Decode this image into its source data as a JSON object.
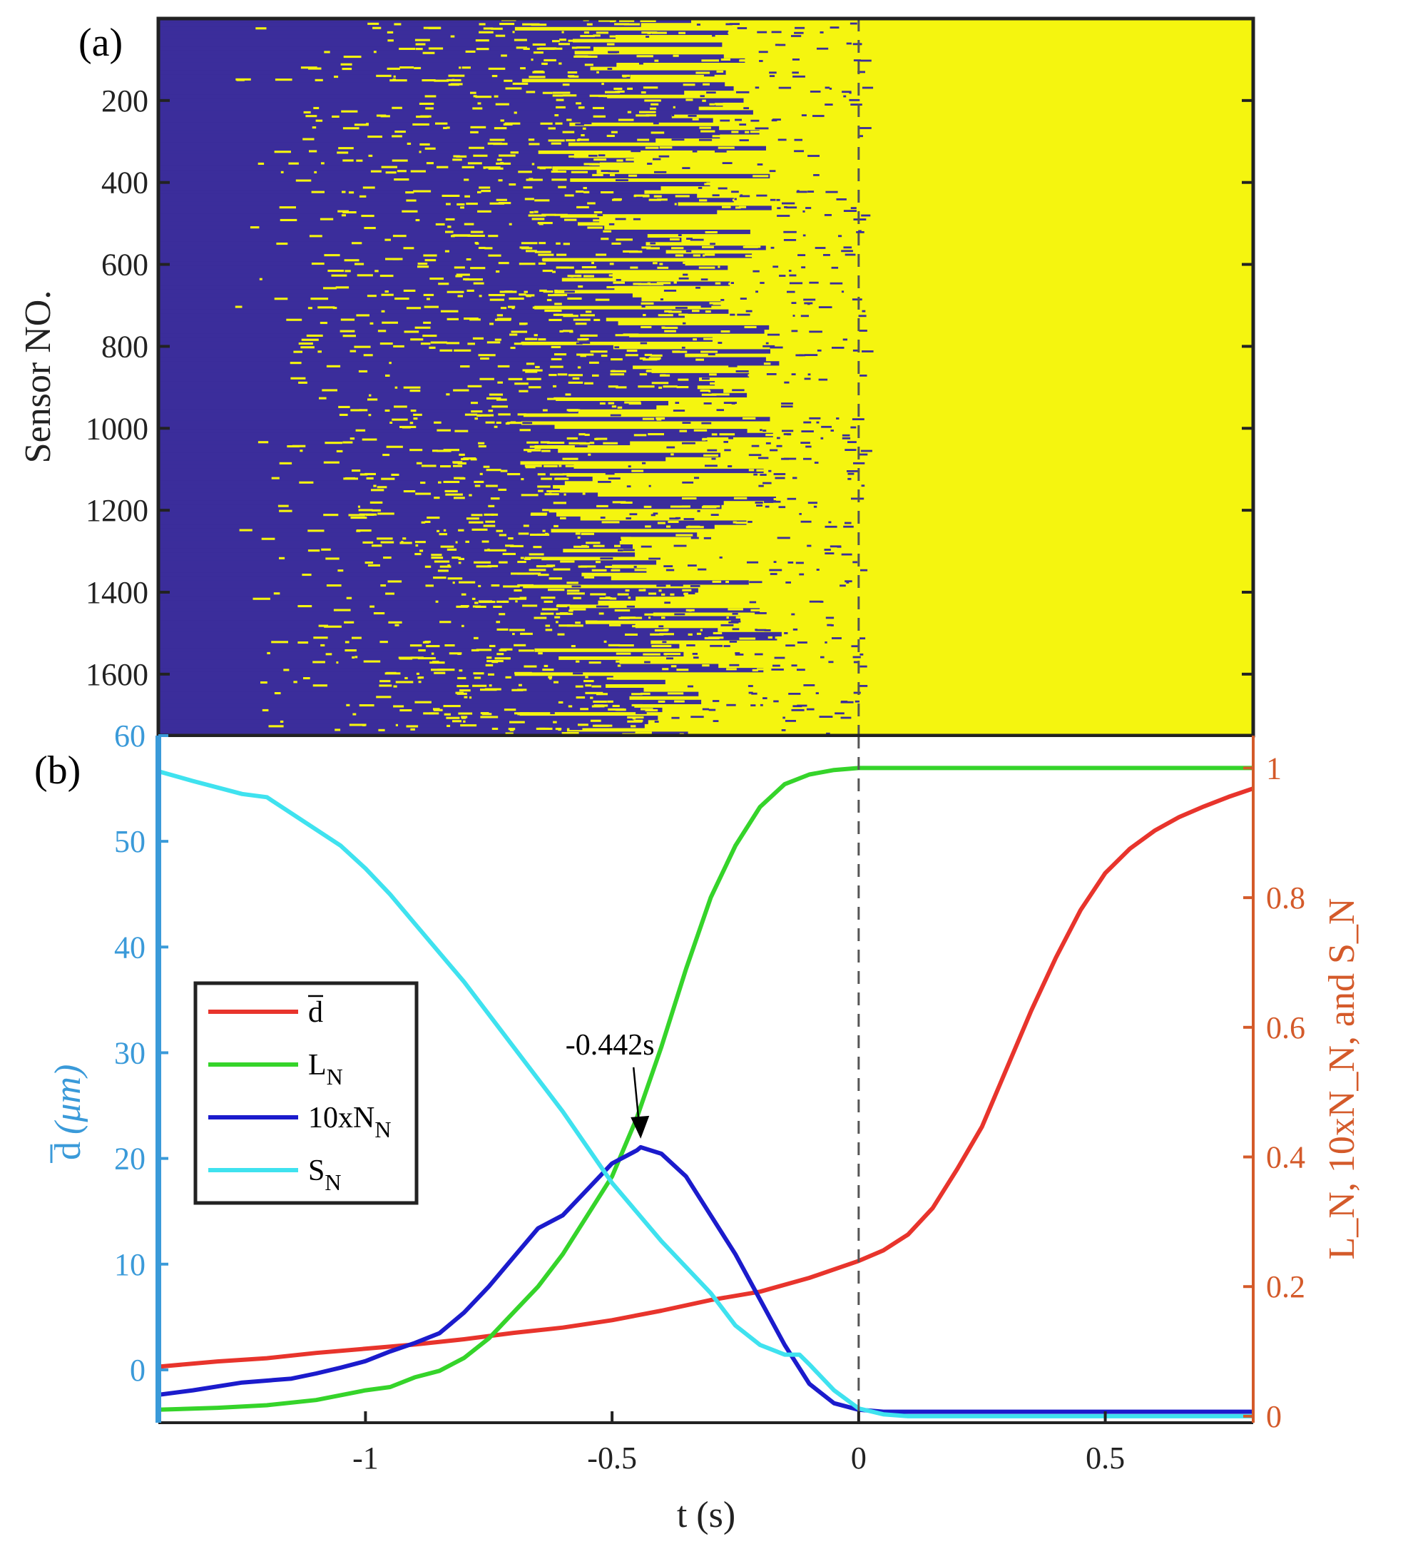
{
  "chart_data": [
    {
      "panel": "(a)",
      "type": "heatmap",
      "description_colors": {
        "state_0": "#3b2d9b",
        "state_1": "#f5f50f"
      },
      "ylabel": "Sensor NO.",
      "yticks": [
        200,
        400,
        600,
        800,
        1000,
        1200,
        1400,
        1600
      ],
      "ylim": [
        0,
        1750
      ],
      "xlim": [
        -1.42,
        0.8
      ],
      "front_start_t": -1.05,
      "front_end_t": -0.05,
      "marker_t": 0
    },
    {
      "panel": "(b)",
      "type": "line",
      "xlabel": "t (s)",
      "xticks": [
        -1,
        -0.5,
        0,
        0.5
      ],
      "xlim": [
        -1.42,
        0.8
      ],
      "y_left": {
        "label_main": "d",
        "label_unit": "(μm)",
        "ticks": [
          0,
          10,
          20,
          30,
          40,
          50,
          60
        ],
        "lim": [
          -5,
          60
        ],
        "color": "#3a9ad9"
      },
      "y_right": {
        "label": "L_N, 10xN_N, and S_N",
        "ticks": [
          "0",
          "0.2",
          "0.4",
          "0.6",
          "0.8",
          "1"
        ],
        "tick_values": [
          0,
          0.2,
          0.4,
          0.6,
          0.8,
          1
        ],
        "lim": [
          -0.01,
          1.05
        ],
        "color": "#d45a2a"
      },
      "series": [
        {
          "name": "d",
          "label_main": "d",
          "label_sub": "",
          "axis": "left",
          "color": "#e8342c",
          "x": [
            -1.42,
            -1.3,
            -1.2,
            -1.1,
            -1.0,
            -0.9,
            -0.8,
            -0.7,
            -0.6,
            -0.5,
            -0.4,
            -0.3,
            -0.2,
            -0.1,
            0.0,
            0.05,
            0.1,
            0.15,
            0.2,
            0.25,
            0.3,
            0.35,
            0.4,
            0.45,
            0.5,
            0.55,
            0.6,
            0.65,
            0.7,
            0.75,
            0.8
          ],
          "y": [
            0.3,
            0.8,
            1.1,
            1.6,
            2.0,
            2.4,
            2.9,
            3.5,
            4.0,
            4.7,
            5.6,
            6.6,
            7.4,
            8.7,
            10.3,
            11.3,
            12.8,
            15.3,
            19.0,
            23.0,
            28.5,
            34.0,
            39.0,
            43.5,
            47.0,
            49.3,
            51.0,
            52.3,
            53.3,
            54.2,
            55.0
          ]
        },
        {
          "name": "L_N",
          "label_main": "L",
          "label_sub": "N",
          "axis": "right",
          "color": "#35d42a",
          "x": [
            -1.42,
            -1.3,
            -1.2,
            -1.1,
            -1.0,
            -0.95,
            -0.9,
            -0.85,
            -0.8,
            -0.75,
            -0.7,
            -0.65,
            -0.6,
            -0.55,
            -0.5,
            -0.45,
            -0.4,
            -0.35,
            -0.3,
            -0.25,
            -0.2,
            -0.15,
            -0.1,
            -0.05,
            0.0,
            0.8
          ],
          "y": [
            0.01,
            0.013,
            0.017,
            0.025,
            0.04,
            0.045,
            0.06,
            0.07,
            0.09,
            0.12,
            0.16,
            0.2,
            0.25,
            0.31,
            0.37,
            0.46,
            0.57,
            0.69,
            0.8,
            0.88,
            0.94,
            0.975,
            0.99,
            0.997,
            1.0,
            1.0
          ]
        },
        {
          "name": "10xN_N",
          "label_main": "10xN",
          "label_sub": "N",
          "axis": "right",
          "color": "#1b1bcc",
          "x": [
            -1.42,
            -1.35,
            -1.25,
            -1.15,
            -1.1,
            -1.05,
            -1.0,
            -0.95,
            -0.9,
            -0.85,
            -0.8,
            -0.75,
            -0.7,
            -0.65,
            -0.6,
            -0.55,
            -0.5,
            -0.45,
            -0.442,
            -0.4,
            -0.35,
            -0.3,
            -0.25,
            -0.2,
            -0.15,
            -0.1,
            -0.05,
            0.0,
            0.05,
            0.1,
            0.8
          ],
          "y": [
            0.033,
            0.04,
            0.052,
            0.058,
            0.066,
            0.075,
            0.085,
            0.1,
            0.113,
            0.128,
            0.16,
            0.2,
            0.245,
            0.29,
            0.31,
            0.35,
            0.39,
            0.41,
            0.415,
            0.405,
            0.37,
            0.31,
            0.25,
            0.18,
            0.11,
            0.05,
            0.02,
            0.01,
            0.007,
            0.007,
            0.007
          ]
        },
        {
          "name": "S_N",
          "label_main": "S",
          "label_sub": "N",
          "axis": "right",
          "color": "#3fe2ef",
          "x": [
            -1.42,
            -1.35,
            -1.25,
            -1.2,
            -1.15,
            -1.05,
            -1.0,
            -0.95,
            -0.9,
            -0.8,
            -0.7,
            -0.6,
            -0.5,
            -0.4,
            -0.3,
            -0.25,
            -0.2,
            -0.15,
            -0.12,
            -0.1,
            -0.05,
            0.0,
            0.05,
            0.1,
            0.8
          ],
          "y": [
            0.995,
            0.98,
            0.96,
            0.955,
            0.93,
            0.88,
            0.845,
            0.805,
            0.76,
            0.67,
            0.57,
            0.47,
            0.36,
            0.27,
            0.19,
            0.14,
            0.11,
            0.095,
            0.095,
            0.08,
            0.04,
            0.012,
            0.003,
            0.0,
            0.0
          ]
        }
      ],
      "annotation": {
        "text": "-0.442s",
        "x": -0.442,
        "y_right": 0.415
      },
      "legend_position": "center-left",
      "marker_t": 0
    }
  ]
}
